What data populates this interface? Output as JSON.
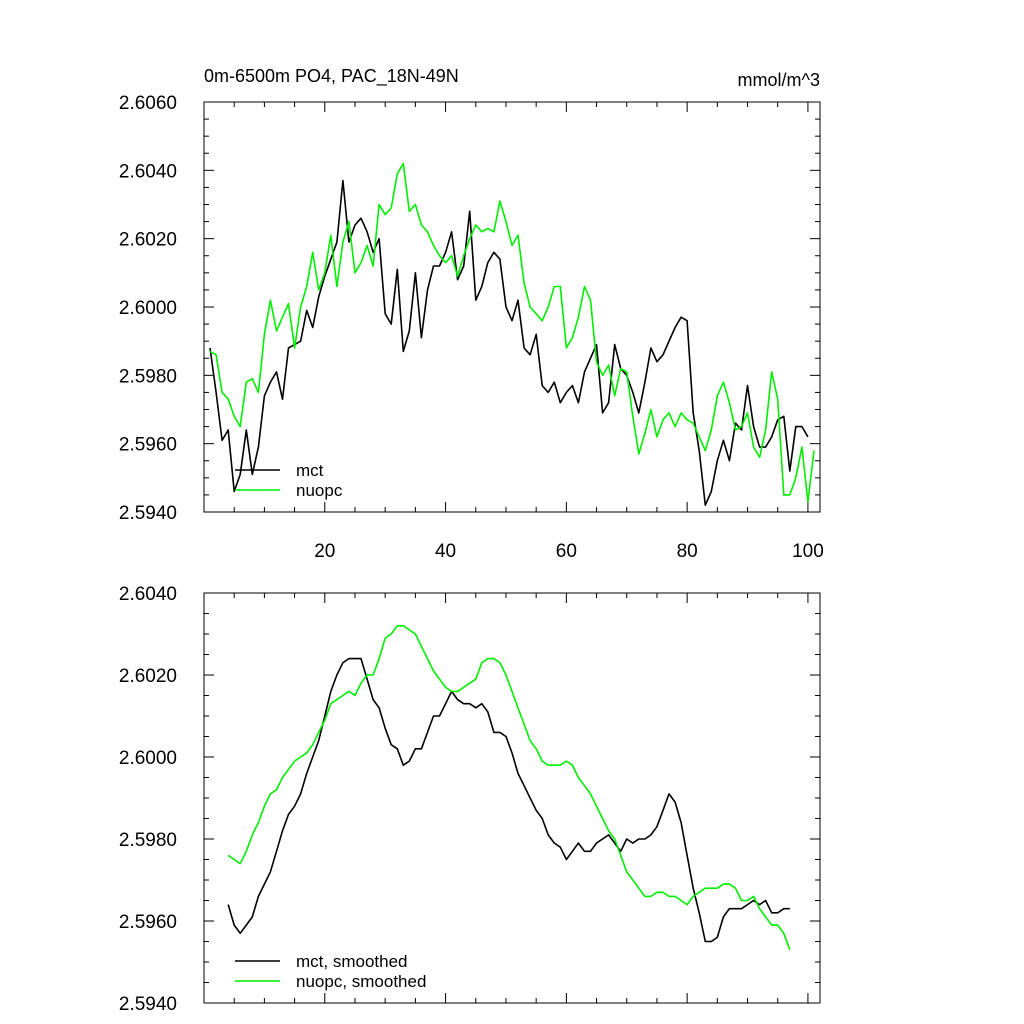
{
  "colors": {
    "mct": "#000000",
    "nuopc": "#00ee00"
  },
  "chart_data": [
    {
      "type": "line",
      "title": "0m-6500m PO4, PAC_18N-49N",
      "units": "mmol/m^3",
      "xlim": [
        0,
        102
      ],
      "ylim": [
        2.594,
        2.606
      ],
      "xticks": [
        20,
        40,
        60,
        80,
        100
      ],
      "xtick_labels": [
        "20",
        "40",
        "60",
        "80",
        "100"
      ],
      "yticks": [
        2.594,
        2.596,
        2.598,
        2.6,
        2.602,
        2.604,
        2.606
      ],
      "ytick_labels": [
        "2.5940",
        "2.5960",
        "2.5980",
        "2.6000",
        "2.6020",
        "2.6040",
        "2.6060"
      ],
      "legend": [
        "mct",
        "nuopc"
      ],
      "series": [
        {
          "name": "mct",
          "color": "#000000",
          "x_start": 1,
          "values": [
            2.5988,
            2.5975,
            2.5961,
            2.5964,
            2.5946,
            2.5951,
            2.5964,
            2.5951,
            2.5959,
            2.5974,
            2.5978,
            2.5981,
            2.5973,
            2.5988,
            2.5989,
            2.599,
            2.5999,
            2.5994,
            2.6003,
            2.6009,
            2.6014,
            2.6019,
            2.6037,
            2.6019,
            2.6024,
            2.6026,
            2.6022,
            2.6016,
            2.602,
            2.5998,
            2.5995,
            2.6011,
            2.5987,
            2.5993,
            2.601,
            2.5991,
            2.6005,
            2.6012,
            2.6012,
            2.6016,
            2.6022,
            2.6008,
            2.6012,
            2.6028,
            2.6002,
            2.6006,
            2.6013,
            2.6016,
            2.6014,
            2.6,
            2.5996,
            2.6002,
            2.5988,
            2.5986,
            2.5992,
            2.5977,
            2.5975,
            2.5978,
            2.5972,
            2.5975,
            2.5977,
            2.5972,
            2.5981,
            2.5985,
            2.5989,
            2.5969,
            2.5972,
            2.5989,
            2.5982,
            2.598,
            2.5975,
            2.5969,
            2.5978,
            2.5988,
            2.5984,
            2.5986,
            2.599,
            2.5994,
            2.5997,
            2.5996,
            2.5969,
            2.5958,
            2.5942,
            2.5946,
            2.5955,
            2.5961,
            2.5955,
            2.5966,
            2.5964,
            2.5977,
            2.5965,
            2.5959,
            2.5959,
            2.5962,
            2.5967,
            2.5968,
            2.5952,
            2.5965,
            2.5965,
            2.5962
          ]
        },
        {
          "name": "nuopc",
          "color": "#00ee00",
          "x_start": 1,
          "values": [
            2.5987,
            2.5986,
            2.5975,
            2.5973,
            2.5968,
            2.5965,
            2.5978,
            2.5979,
            2.5975,
            2.5992,
            2.6002,
            2.5993,
            2.5997,
            2.6001,
            2.5988,
            2.6,
            2.6006,
            2.6016,
            2.6005,
            2.601,
            2.6021,
            2.6006,
            2.6019,
            2.6025,
            2.601,
            2.6013,
            2.6018,
            2.6012,
            2.603,
            2.6027,
            2.6029,
            2.6039,
            2.6042,
            2.6028,
            2.603,
            2.6024,
            2.6022,
            2.6018,
            2.6015,
            2.6013,
            2.6015,
            2.6009,
            2.6015,
            2.602,
            2.6024,
            2.6022,
            2.6023,
            2.6022,
            2.6031,
            2.6025,
            2.6018,
            2.6021,
            2.6007,
            2.6,
            2.5998,
            2.5996,
            2.6,
            2.6006,
            2.6006,
            2.5988,
            2.5991,
            2.5997,
            2.6006,
            2.6002,
            2.5984,
            2.598,
            2.5983,
            2.5974,
            2.5982,
            2.5981,
            2.5968,
            2.5957,
            2.5963,
            2.597,
            2.5962,
            2.5967,
            2.5969,
            2.5965,
            2.5969,
            2.5967,
            2.5966,
            2.5962,
            2.5958,
            2.5964,
            2.5974,
            2.5978,
            2.5972,
            2.5964,
            2.5965,
            2.5969,
            2.5959,
            2.5956,
            2.5964,
            2.5981,
            2.5973,
            2.5945,
            2.5945,
            2.595,
            2.5959,
            2.5943,
            2.5958
          ]
        }
      ]
    },
    {
      "type": "line",
      "title": "",
      "xlim": [
        0,
        102
      ],
      "ylim": [
        2.594,
        2.604
      ],
      "xticks": [
        20,
        40,
        60,
        80,
        100
      ],
      "yticks": [
        2.594,
        2.596,
        2.598,
        2.6,
        2.602,
        2.604
      ],
      "ytick_labels": [
        "2.5940",
        "2.5960",
        "2.5980",
        "2.6000",
        "2.6020",
        "2.6040"
      ],
      "legend": [
        "mct, smoothed",
        "nuopc, smoothed"
      ],
      "series": [
        {
          "name": "mct, smoothed",
          "color": "#000000",
          "x_start": 4,
          "values": [
            2.5964,
            2.5959,
            2.5957,
            2.5959,
            2.5961,
            2.5966,
            2.5969,
            2.5972,
            2.5977,
            2.5982,
            2.5986,
            2.5988,
            2.5991,
            2.5996,
            2.6,
            2.6004,
            2.601,
            2.6016,
            2.602,
            2.6023,
            2.6024,
            2.6024,
            2.6024,
            2.6019,
            2.6014,
            2.6012,
            2.6007,
            2.6003,
            2.6002,
            2.5998,
            2.5999,
            2.6002,
            2.6002,
            2.6006,
            2.601,
            2.601,
            2.6013,
            2.6016,
            2.6014,
            2.6013,
            2.6013,
            2.6012,
            2.6013,
            2.6011,
            2.6006,
            2.6006,
            2.6005,
            2.6001,
            2.5996,
            2.5993,
            2.599,
            2.5987,
            2.5985,
            2.5981,
            2.5979,
            2.5978,
            2.5975,
            2.5977,
            2.5979,
            2.5977,
            2.5977,
            2.5979,
            2.598,
            2.5981,
            2.5979,
            2.5977,
            2.598,
            2.5979,
            2.598,
            2.598,
            2.5981,
            2.5983,
            2.5987,
            2.5991,
            2.5989,
            2.5984,
            2.5976,
            2.5968,
            2.5962,
            2.5955,
            2.5955,
            2.5956,
            2.5961,
            2.5963,
            2.5963,
            2.5963,
            2.5964,
            2.5965,
            2.5964,
            2.5965,
            2.5962,
            2.5962,
            2.5963,
            2.5963
          ]
        },
        {
          "name": "nuopc, smoothed",
          "color": "#00ee00",
          "x_start": 4,
          "values": [
            2.5976,
            2.5975,
            2.5974,
            2.5977,
            2.5981,
            2.5984,
            2.5988,
            2.5991,
            2.5992,
            2.5995,
            2.5997,
            2.5999,
            2.6,
            2.6001,
            2.6003,
            2.6006,
            2.6009,
            2.6013,
            2.6014,
            2.6015,
            2.6016,
            2.6015,
            2.6018,
            2.602,
            2.602,
            2.6024,
            2.6029,
            2.603,
            2.6032,
            2.6032,
            2.6031,
            2.603,
            2.6027,
            2.6024,
            2.6021,
            2.6019,
            2.6017,
            2.6016,
            2.6016,
            2.6017,
            2.6018,
            2.6019,
            2.6023,
            2.6024,
            2.6024,
            2.6023,
            2.602,
            2.6016,
            2.6012,
            2.6008,
            2.6004,
            2.6002,
            2.5999,
            2.5998,
            2.5998,
            2.5998,
            2.5999,
            2.5998,
            2.5995,
            2.5993,
            2.5991,
            2.5988,
            2.5985,
            2.5982,
            2.598,
            2.5976,
            2.5972,
            2.597,
            2.5968,
            2.5966,
            2.5966,
            2.5967,
            2.5967,
            2.5966,
            2.5966,
            2.5965,
            2.5964,
            2.5966,
            2.5967,
            2.5968,
            2.5968,
            2.5968,
            2.5969,
            2.5969,
            2.5968,
            2.5965,
            2.5965,
            2.5966,
            2.5963,
            2.5961,
            2.5959,
            2.5959,
            2.5957,
            2.5953
          ]
        }
      ]
    }
  ]
}
